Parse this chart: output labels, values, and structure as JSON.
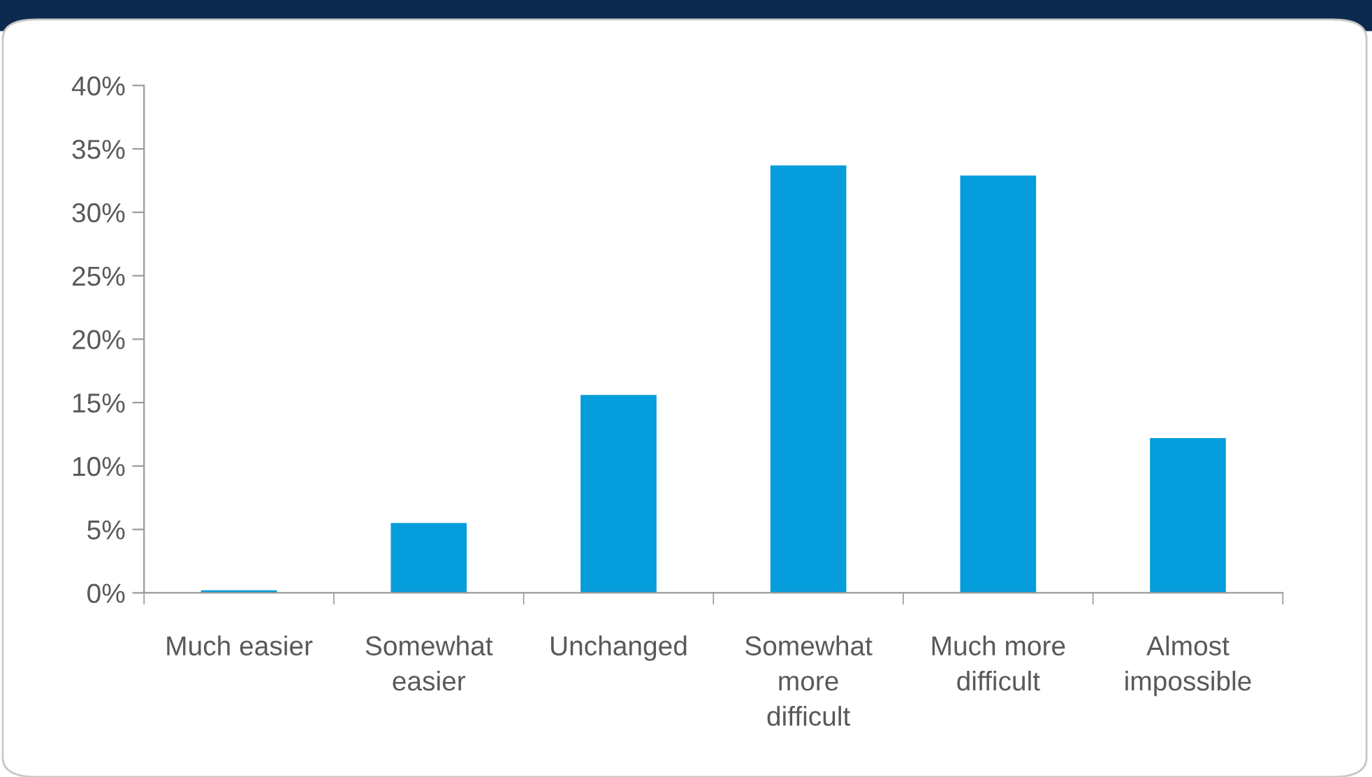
{
  "chart_data": {
    "type": "bar",
    "categories": [
      "Much easier",
      "Somewhat easier",
      "Unchanged",
      "Somewhat more difficult",
      "Much more difficult",
      "Almost impossible"
    ],
    "values": [
      0.2,
      5.5,
      15.6,
      33.7,
      32.9,
      12.2
    ],
    "color": "#059ddb",
    "ylim": [
      0,
      40
    ],
    "yticks": [
      {
        "value": 0,
        "label": "0%"
      },
      {
        "value": 5,
        "label": "5%"
      },
      {
        "value": 10,
        "label": "10%"
      },
      {
        "value": 15,
        "label": "15%"
      },
      {
        "value": 20,
        "label": "20%"
      },
      {
        "value": 25,
        "label": "25%"
      },
      {
        "value": 30,
        "label": "30%"
      },
      {
        "value": 35,
        "label": "35%"
      },
      {
        "value": 40,
        "label": "40%"
      }
    ],
    "grid": false,
    "legend": false
  }
}
